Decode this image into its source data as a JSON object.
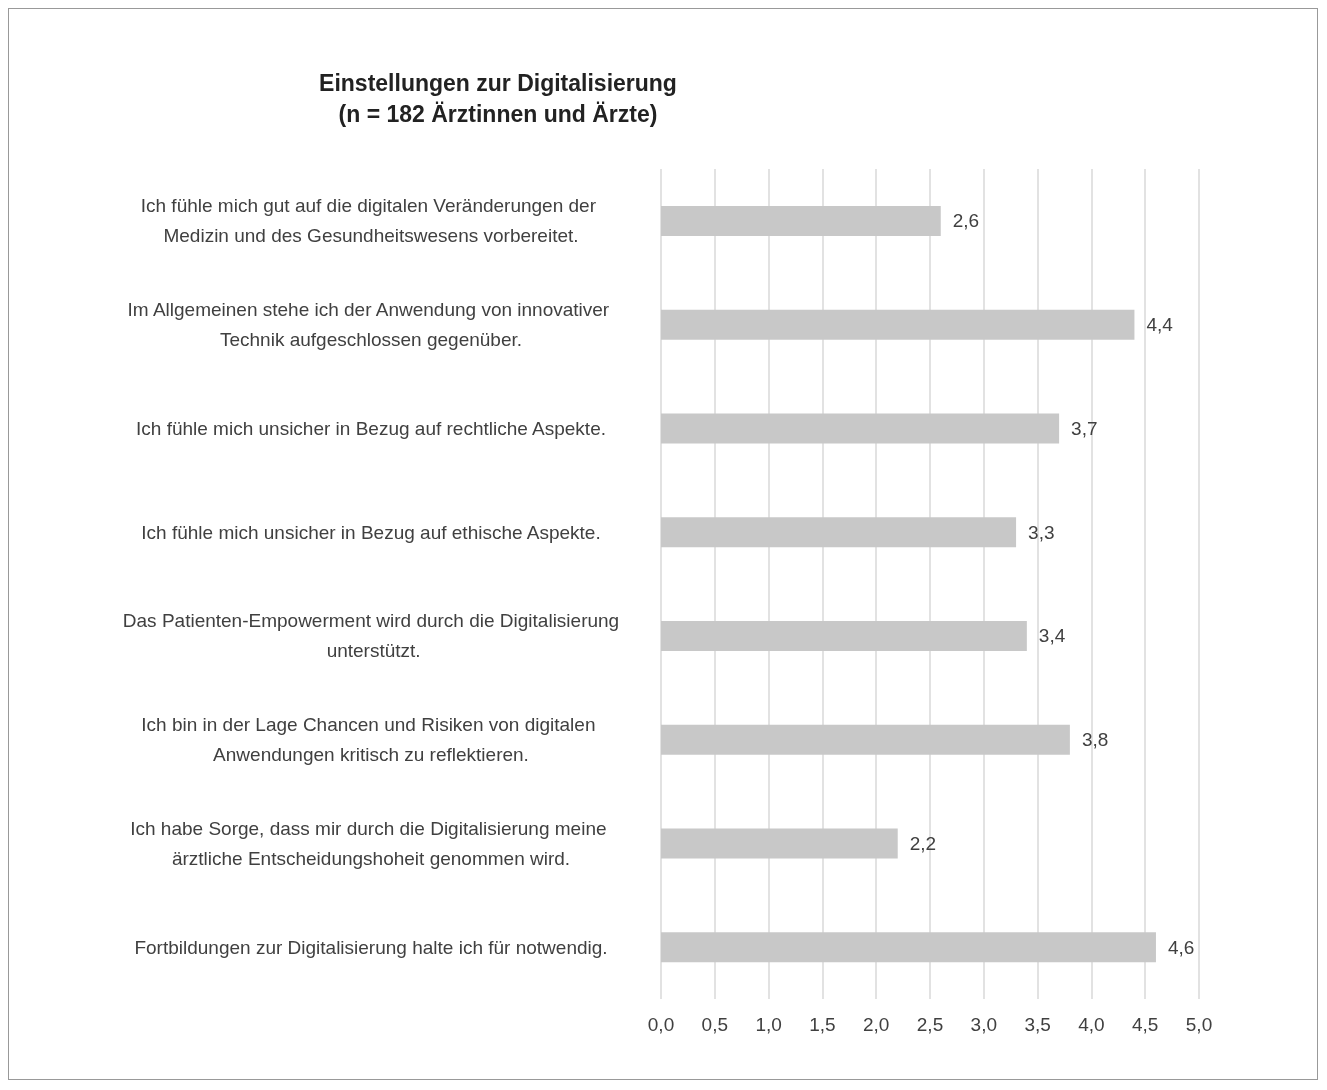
{
  "chart_data": {
    "type": "bar",
    "orientation": "horizontal",
    "title": "Einstellungen zur Digitalisierung",
    "subtitle": "(n = 182 Ärztinnen und Ärzte)",
    "categories": [
      "Ich fühle mich gut auf die digitalen Veränderungen der Medizin und des Gesundheitswesens vorbereitet.",
      "Im Allgemeinen stehe ich der Anwendung von innovativer Technik aufgeschlossen gegenüber.",
      "Ich fühle mich unsicher in Bezug auf rechtliche Aspekte.",
      "Ich fühle mich unsicher in Bezug auf ethische Aspekte.",
      "Das Patienten-Empowerment wird durch die Digitalisierung unterstützt.",
      "Ich bin in der Lage Chancen und Risiken von digitalen Anwendungen kritisch zu reflektieren.",
      "Ich habe Sorge, dass mir durch die Digitalisierung meine ärztliche Entscheidungshoheit genommen wird.",
      "Fortbildungen zur Digitalisierung halte ich für notwendig."
    ],
    "values": [
      2.6,
      4.4,
      3.7,
      3.3,
      3.4,
      3.8,
      2.2,
      4.6
    ],
    "value_labels": [
      "2,6",
      "4,4",
      "3,7",
      "3,3",
      "3,4",
      "3,8",
      "2,2",
      "4,6"
    ],
    "color": "#c8c8c8",
    "xlim": [
      0,
      5
    ],
    "xticks": [
      {
        "value": 0,
        "label": "0,0"
      },
      {
        "value": 0.5,
        "label": "0,5"
      },
      {
        "value": 1,
        "label": "1,0"
      },
      {
        "value": 1.5,
        "label": "1,5"
      },
      {
        "value": 2,
        "label": "2,0"
      },
      {
        "value": 2.5,
        "label": "2,5"
      },
      {
        "value": 3,
        "label": "3,0"
      },
      {
        "value": 3.5,
        "label": "3,5"
      },
      {
        "value": 4,
        "label": "4,0"
      },
      {
        "value": 4.5,
        "label": "4,5"
      },
      {
        "value": 5,
        "label": "5,0"
      }
    ],
    "grid": "x"
  }
}
